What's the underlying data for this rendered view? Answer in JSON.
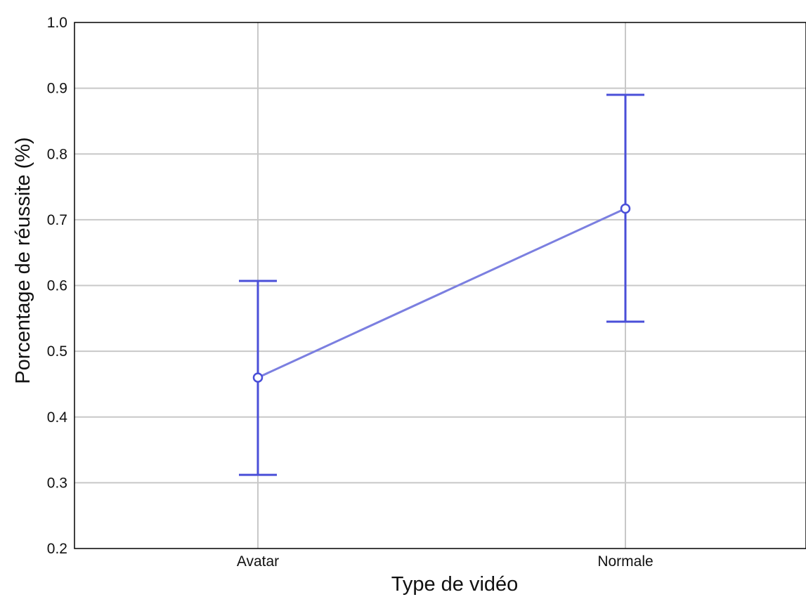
{
  "chart_data": {
    "type": "line",
    "title": "",
    "xlabel": "Type de vidéo",
    "ylabel": "Porcentage de réussite  (%)",
    "categories": [
      "Avatar",
      "Normale"
    ],
    "series": [
      {
        "values": [
          0.46,
          0.717
        ],
        "error_low": [
          0.312,
          0.545
        ],
        "error_high": [
          0.607,
          0.89
        ],
        "color": "#4a4fd8"
      }
    ],
    "ylim": [
      0.2,
      1.0
    ],
    "yticks": [
      "0.2",
      "0.3",
      "0.4",
      "0.5",
      "0.6",
      "0.7",
      "0.8",
      "0.9",
      "1.0"
    ],
    "grid": true,
    "legend": "none"
  }
}
